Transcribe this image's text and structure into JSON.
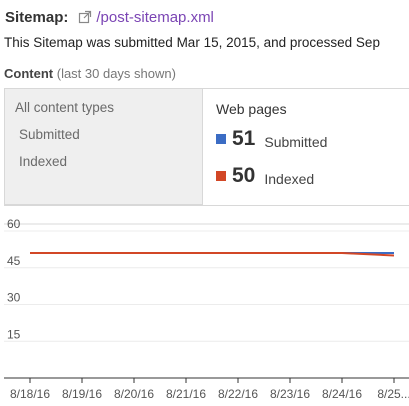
{
  "header": {
    "label": "Sitemap:",
    "icon": "external-link-icon",
    "link_text": "/post-sitemap.xml"
  },
  "description": "This Sitemap was submitted Mar 15, 2015, and processed Sep",
  "content": {
    "label": "Content",
    "note": "(last 30 days shown)"
  },
  "tabs": {
    "left": {
      "title": "All content types",
      "rows": [
        "Submitted",
        "Indexed"
      ]
    },
    "right": {
      "title": "Web pages",
      "metrics": [
        {
          "value": "51",
          "label": "Submitted",
          "color": "#3b6cc4"
        },
        {
          "value": "50",
          "label": "Indexed",
          "color": "#d24726"
        }
      ]
    }
  },
  "chart_data": {
    "type": "line",
    "x": [
      "8/18/16",
      "8/19/16",
      "8/20/16",
      "8/21/16",
      "8/22/16",
      "8/23/16",
      "8/24/16",
      "8/25..."
    ],
    "y_ticks": [
      "60",
      "45",
      "30",
      "15"
    ],
    "ylim": [
      0,
      60
    ],
    "grid": true,
    "series": [
      {
        "name": "Submitted",
        "color": "#3b6cc4",
        "values": [
          51,
          51,
          51,
          51,
          51,
          51,
          51,
          51
        ]
      },
      {
        "name": "Indexed",
        "color": "#d24726",
        "values": [
          51,
          51,
          51,
          51,
          51,
          51,
          51,
          50
        ]
      }
    ]
  }
}
